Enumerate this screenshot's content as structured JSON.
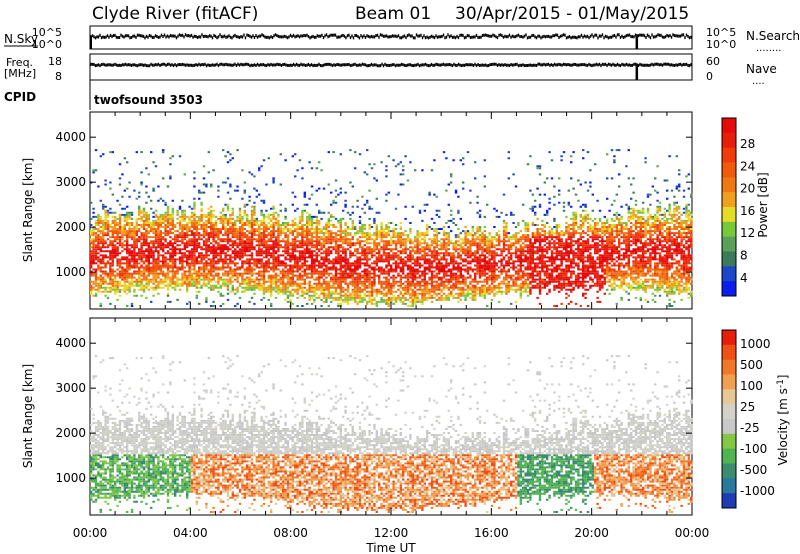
{
  "header": {
    "station": "Clyde River (fitACF)",
    "beam": "Beam 01",
    "dates": "30/Apr/2015 - 01/May/2015"
  },
  "side_labels": {
    "nsky": "N.Sky",
    "freq": "Freq.",
    "freq_unit": "[MHz]",
    "cpid": "CPID",
    "nsearch": "N.Search",
    "nave": "Nave",
    "nsearch_dots": "........",
    "nave_dots": "...."
  },
  "cpid_text": "twofsound 3503",
  "chart_data": [
    {
      "type": "line",
      "name": "N.Sky / N.Search",
      "left_ticks": [
        "10^5",
        "10^0"
      ],
      "right_ticks": [
        "10^5",
        "10^0"
      ],
      "level": 0.55,
      "drop_hour": 21.8
    },
    {
      "type": "line",
      "name": "Freq / Nave",
      "left_ticks": [
        "18",
        "8"
      ],
      "right_ticks": [
        "60",
        "0"
      ],
      "level": 0.58,
      "drop_hour": 21.8
    },
    {
      "type": "heatmap",
      "quantity": "power",
      "ylabel": "Slant Range [km]",
      "ylim": [
        180,
        4560
      ],
      "yticks": [
        1000,
        2000,
        3000,
        4000
      ],
      "xlim": [
        0,
        24
      ],
      "colorbar": {
        "label": "Power [dB]",
        "ticks": [
          "28",
          "24",
          "20",
          "16",
          "12",
          "8",
          "4"
        ],
        "colors": [
          "#0a1ef0",
          "#1e46c8",
          "#3c7a5a",
          "#5aa05a",
          "#78c83c",
          "#e6dc28",
          "#f0a01e",
          "#f07814",
          "#f05a0a",
          "#f03c0a",
          "#e61e0a",
          "#e60a0a"
        ]
      }
    },
    {
      "type": "heatmap",
      "quantity": "velocity",
      "ylabel": "Slant Range [km]",
      "ylim": [
        180,
        4560
      ],
      "yticks": [
        1000,
        2000,
        3000,
        4000
      ],
      "xlim": [
        0,
        24
      ],
      "colorbar": {
        "label": "Velocity [m s^-1]",
        "ticks": [
          "1000",
          "500",
          "100",
          "25",
          "-25",
          "-100",
          "-500",
          "-1000"
        ],
        "colors": [
          "#1e3cb4",
          "#2878a0",
          "#3c8c6e",
          "#50b450",
          "#82c846",
          "#c8c8c8",
          "#d2d2c8",
          "#e6c896",
          "#f0a050",
          "#f07828",
          "#f05014",
          "#e61e0a"
        ]
      }
    }
  ],
  "x_axis": {
    "ticks": [
      "00:00",
      "04:00",
      "08:00",
      "12:00",
      "16:00",
      "20:00",
      "00:00"
    ],
    "label": "Time UT"
  }
}
